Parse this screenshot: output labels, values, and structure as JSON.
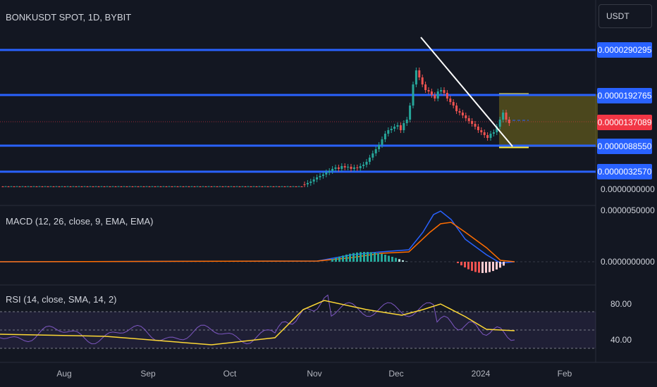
{
  "header": {
    "symbol": "BONKUSDT SPOT, 1D, BYBIT"
  },
  "currency_button": {
    "label": "USDT"
  },
  "price_levels": [
    {
      "label": "0.0000290295"
    },
    {
      "label": "0.0000192765"
    },
    {
      "label": "0.0000137089"
    },
    {
      "label": "0.0000088550"
    },
    {
      "label": "0.0000032570"
    }
  ],
  "price_axis": {
    "zero_label": "0.0000000000"
  },
  "macd": {
    "label": "MACD (12, 26, close, 9, EMA, EMA)",
    "axis_top": "0.0000050000",
    "axis_zero": "0.0000000000"
  },
  "rsi": {
    "label": "RSI (14, close, SMA, 14, 2)",
    "axis_upper": "80.00",
    "axis_lower": "40.00"
  },
  "time_axis": [
    "Aug",
    "Sep",
    "Oct",
    "Nov",
    "Dec",
    "2024",
    "Feb"
  ],
  "colors": {
    "background": "#131722",
    "level_line": "#2962ff",
    "up_candle": "#26a69a",
    "down_candle": "#ef5350",
    "macd_line": "#2962ff",
    "signal_line": "#ff6d00",
    "rsi_line": "#7e57c2",
    "rsi_ma": "#fdd835",
    "trend_line": "#ffffff",
    "target_box": "#ffeb3b"
  }
}
